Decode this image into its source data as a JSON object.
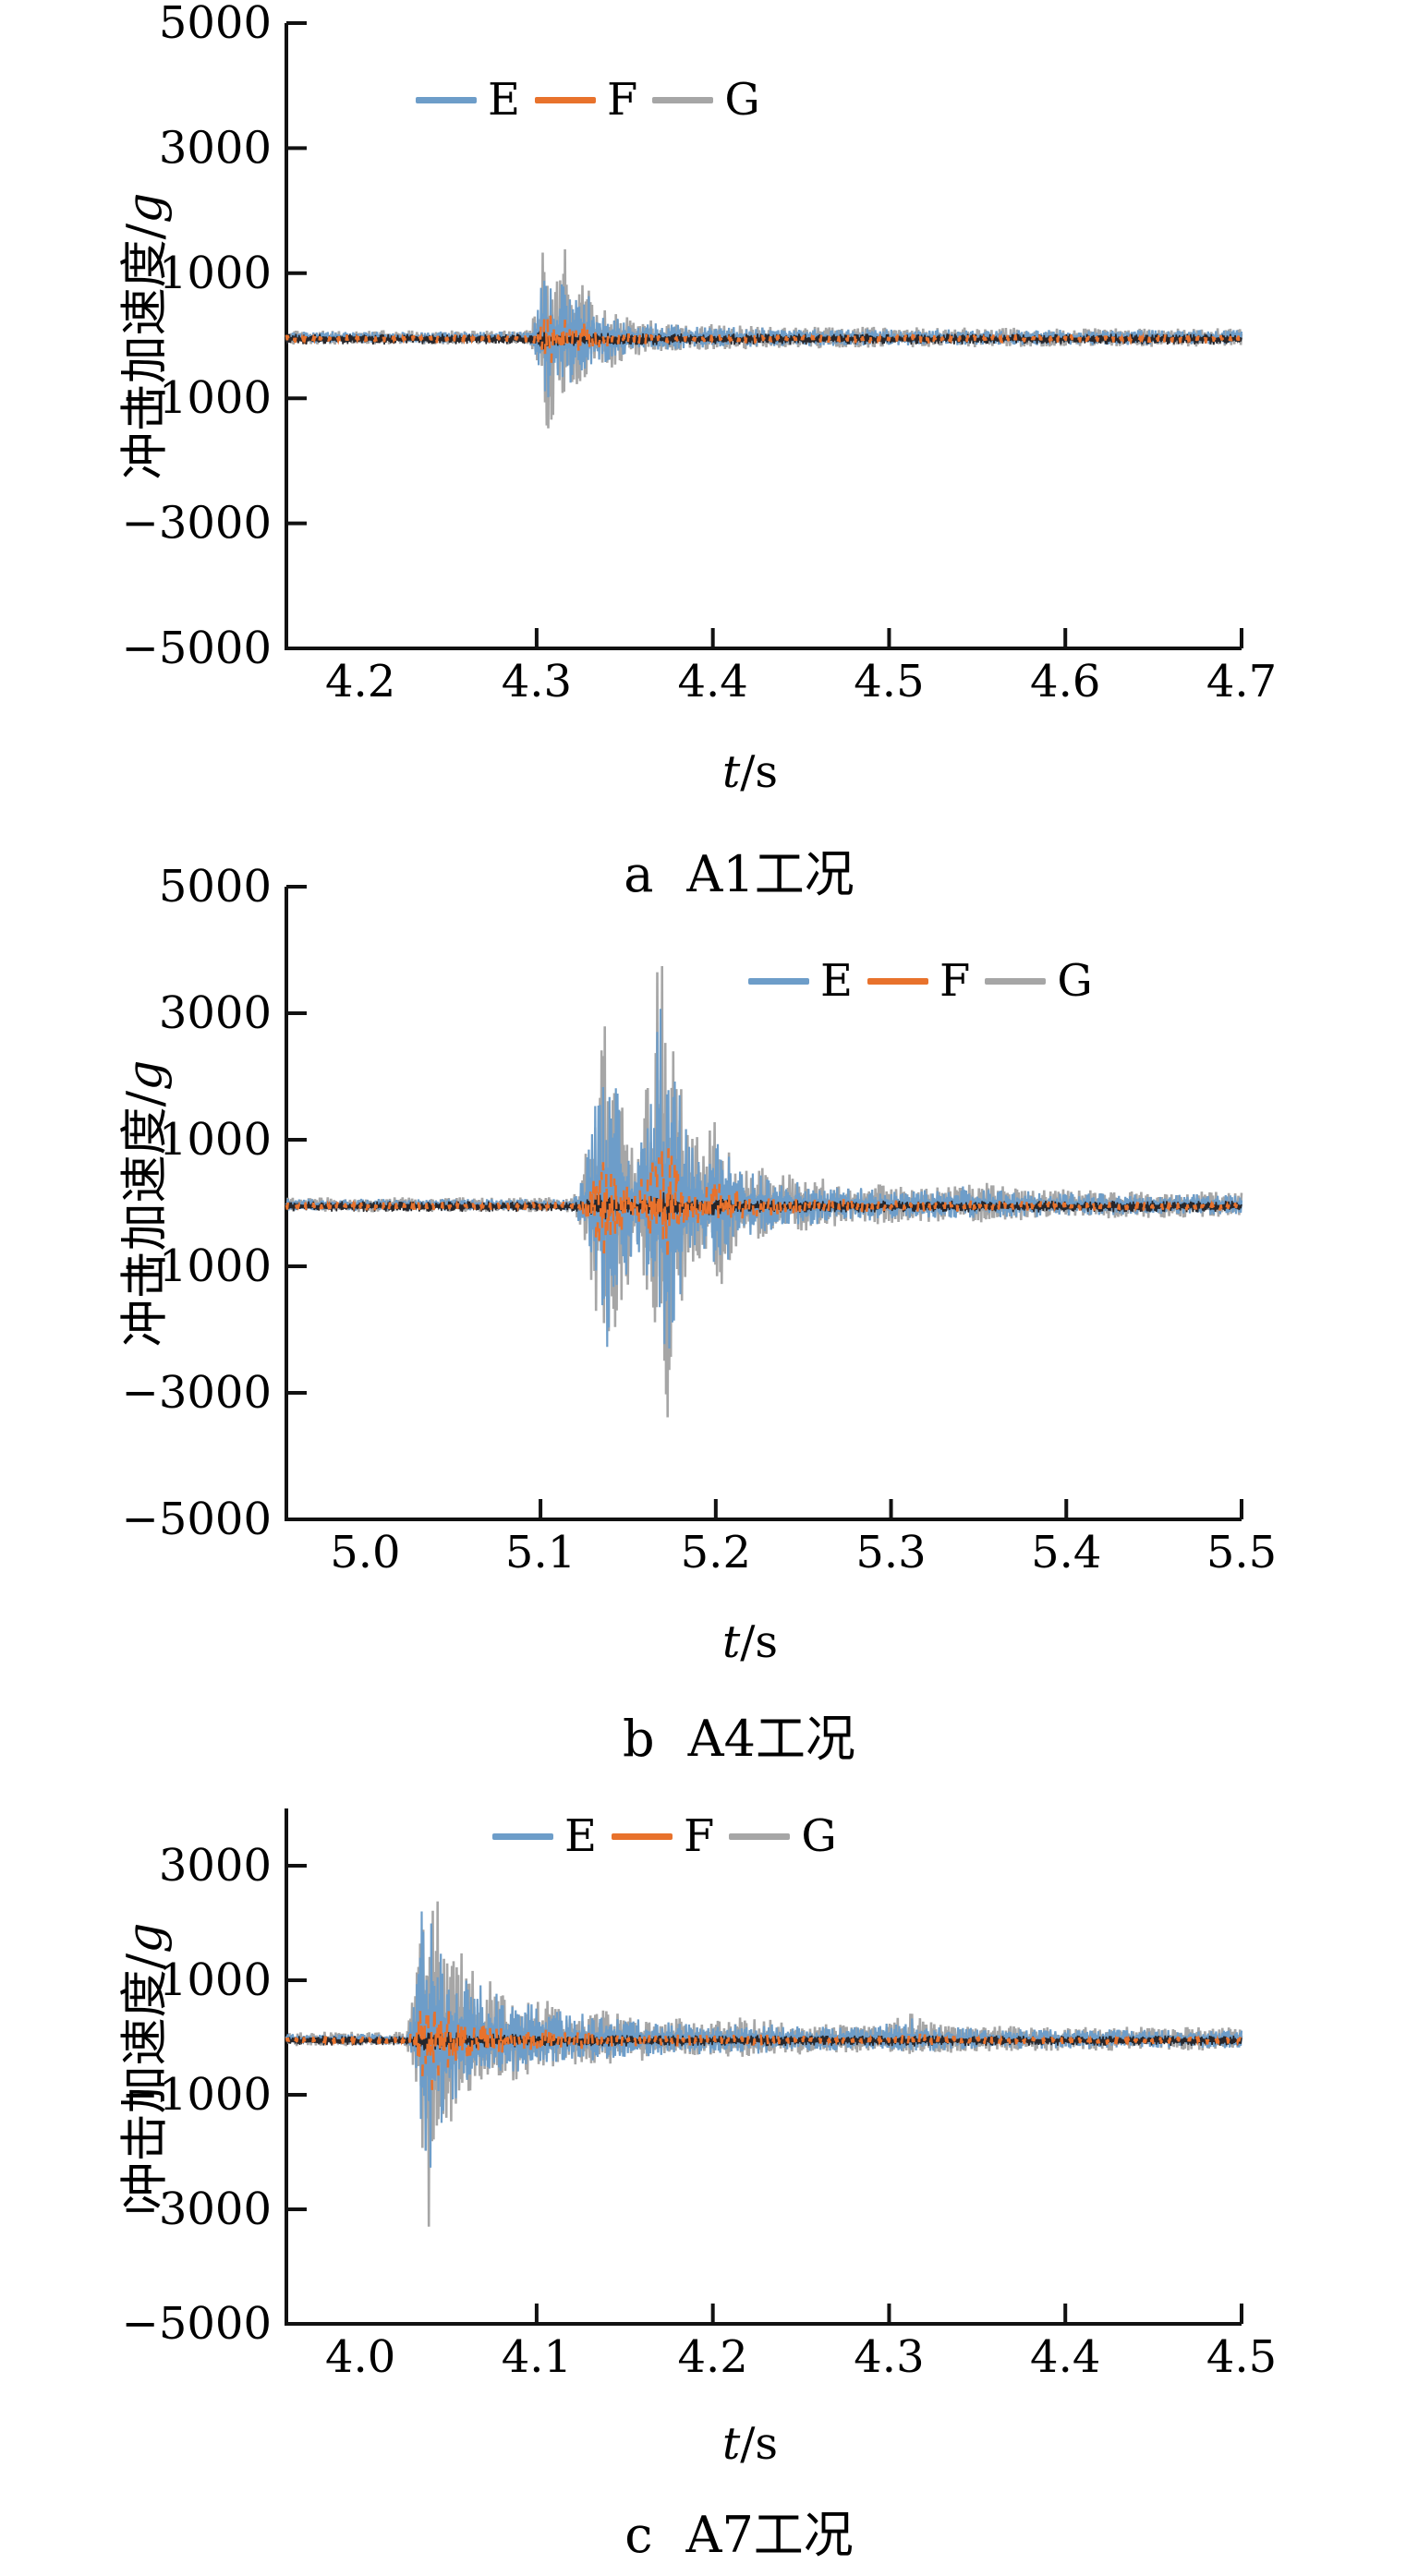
{
  "figure": {
    "background": "#ffffff"
  },
  "colors": {
    "series_E": "#6d9dc9",
    "series_F": "#e8722c",
    "series_G": "#a6a6a6",
    "overlap_dark": "#26262b",
    "axis": "#111111"
  },
  "chart_data": [
    {
      "id": "a",
      "type": "line",
      "caption_index": "a",
      "caption_title": "A1工况",
      "xlabel_var": "t",
      "xlabel_rest": "/s",
      "ylabel_text": "冲击加速度/",
      "ylabel_unit": "g",
      "legend": [
        "E",
        "F",
        "G"
      ],
      "xlim": [
        4.158,
        4.7
      ],
      "xticks": [
        4.2,
        4.3,
        4.4,
        4.5,
        4.6,
        4.7
      ],
      "xtick_labels": [
        "4.2",
        "4.3",
        "4.4",
        "4.5",
        "4.6",
        "4.7"
      ],
      "ylim": [
        -5000,
        5000
      ],
      "yticks": [
        5000,
        3000,
        1000,
        -1000,
        -3000,
        -5000
      ],
      "ytick_labels": [
        "5000",
        "3000",
        "1000",
        "−1000",
        "−3000",
        "−5000"
      ],
      "burst_start": 4.3,
      "peak_positive": 1900,
      "peak_negative": -2150,
      "quiet_band": 120,
      "seed": 1,
      "envelope": [
        [
          4.158,
          120,
          110
        ],
        [
          4.296,
          120,
          110
        ],
        [
          4.3,
          500,
          400
        ],
        [
          4.304,
          1900,
          1000
        ],
        [
          4.307,
          1350,
          2150
        ],
        [
          4.311,
          950,
          750
        ],
        [
          4.316,
          1500,
          1050
        ],
        [
          4.321,
          750,
          900
        ],
        [
          4.327,
          1000,
          650
        ],
        [
          4.334,
          550,
          480
        ],
        [
          4.341,
          420,
          520
        ],
        [
          4.352,
          340,
          310
        ],
        [
          4.372,
          270,
          250
        ],
        [
          4.4,
          220,
          200
        ],
        [
          4.45,
          185,
          175
        ],
        [
          4.52,
          165,
          155
        ],
        [
          4.6,
          155,
          150
        ],
        [
          4.7,
          150,
          145
        ]
      ],
      "series": [
        {
          "name": "G",
          "color_key": "series_G",
          "amp_scale": 1.0,
          "stroke": 2.6,
          "offset": -30
        },
        {
          "name": "E",
          "color_key": "series_E",
          "amp_scale": 0.8,
          "stroke": 2.2,
          "offset": -30
        },
        {
          "name": "overlap",
          "color_key": "overlap_dark",
          "role": "overlap-artifact",
          "amp_scale": 0.045,
          "base_amp": 80,
          "stroke": 1.6,
          "offset": -55
        },
        {
          "name": "F",
          "color_key": "series_F",
          "amp_scale": 0.3,
          "min_amp": 70,
          "stroke": 2.6,
          "dash": "14 38",
          "offset": -50
        }
      ]
    },
    {
      "id": "b",
      "type": "line",
      "caption_index": "b",
      "caption_title": "A4工况",
      "xlabel_var": "t",
      "xlabel_rest": "/s",
      "ylabel_text": "冲击加速度/",
      "ylabel_unit": "g",
      "legend": [
        "E",
        "F",
        "G"
      ],
      "xlim": [
        4.955,
        5.5
      ],
      "xticks": [
        5.0,
        5.1,
        5.2,
        5.3,
        5.4,
        5.5
      ],
      "xtick_labels": [
        "5.0",
        "5.1",
        "5.2",
        "5.3",
        "5.4",
        "5.5"
      ],
      "ylim": [
        -5000,
        5000
      ],
      "yticks": [
        5000,
        3000,
        1000,
        -1000,
        -3000,
        -5000
      ],
      "ytick_labels": [
        "5000",
        "3000",
        "1000",
        "−1000",
        "−3000",
        "−5000"
      ],
      "burst_start": 5.125,
      "peak_positive": 4350,
      "peak_negative": -4000,
      "quiet_band": 120,
      "seed": 2,
      "envelope": [
        [
          4.955,
          120,
          115
        ],
        [
          5.118,
          120,
          115
        ],
        [
          5.125,
          600,
          500
        ],
        [
          5.131,
          2300,
          1600
        ],
        [
          5.136,
          3600,
          2500
        ],
        [
          5.139,
          2100,
          3050
        ],
        [
          5.143,
          2600,
          2000
        ],
        [
          5.148,
          1300,
          1500
        ],
        [
          5.153,
          950,
          850
        ],
        [
          5.158,
          1500,
          1150
        ],
        [
          5.163,
          2300,
          1750
        ],
        [
          5.168,
          4350,
          2600
        ],
        [
          5.171,
          3100,
          4000
        ],
        [
          5.175,
          3300,
          2700
        ],
        [
          5.181,
          1900,
          1550
        ],
        [
          5.187,
          1250,
          1050
        ],
        [
          5.193,
          950,
          850
        ],
        [
          5.199,
          1500,
          1150
        ],
        [
          5.205,
          1150,
          1300
        ],
        [
          5.213,
          750,
          680
        ],
        [
          5.222,
          620,
          570
        ],
        [
          5.233,
          540,
          500
        ],
        [
          5.25,
          450,
          410
        ],
        [
          5.27,
          390,
          350
        ],
        [
          5.3,
          310,
          290
        ],
        [
          5.33,
          285,
          265
        ],
        [
          5.345,
          430,
          310
        ],
        [
          5.362,
          300,
          265
        ],
        [
          5.4,
          245,
          225
        ],
        [
          5.45,
          215,
          205
        ],
        [
          5.5,
          205,
          195
        ]
      ],
      "series": [
        {
          "name": "G",
          "color_key": "series_G",
          "amp_scale": 1.0,
          "stroke": 2.6,
          "offset": -30
        },
        {
          "name": "E",
          "color_key": "series_E",
          "amp_scale": 0.8,
          "stroke": 2.2,
          "offset": -30
        },
        {
          "name": "overlap",
          "color_key": "overlap_dark",
          "role": "overlap-artifact",
          "amp_scale": 0.045,
          "base_amp": 80,
          "stroke": 1.6,
          "offset": -55
        },
        {
          "name": "F",
          "color_key": "series_F",
          "amp_scale": 0.3,
          "min_amp": 70,
          "stroke": 2.6,
          "dash": "14 38",
          "offset": -50
        }
      ]
    },
    {
      "id": "c",
      "type": "line",
      "caption_index": "c",
      "caption_title": "A7工况",
      "xlabel_var": "t",
      "xlabel_rest": "/s",
      "ylabel_text": "冲击加速度/",
      "ylabel_unit": "g",
      "legend": [
        "E",
        "F",
        "G"
      ],
      "xlim": [
        3.958,
        4.5
      ],
      "xticks": [
        4.0,
        4.1,
        4.2,
        4.3,
        4.4,
        4.5
      ],
      "xtick_labels": [
        "4.0",
        "4.1",
        "4.2",
        "4.3",
        "4.4",
        "4.5"
      ],
      "ylim": [
        -5000,
        4000
      ],
      "yticks": [
        3000,
        1000,
        -1000,
        -3000,
        -5000
      ],
      "ytick_labels": [
        "3000",
        "1000",
        "−1000",
        "−3000",
        "−5000"
      ],
      "burst_start": 4.03,
      "peak_positive": 3300,
      "peak_negative": -4000,
      "quiet_band": 130,
      "seed": 3,
      "envelope": [
        [
          3.958,
          130,
          120
        ],
        [
          4.026,
          130,
          120
        ],
        [
          4.031,
          900,
          650
        ],
        [
          4.035,
          3300,
          2000
        ],
        [
          4.039,
          2500,
          4000
        ],
        [
          4.043,
          2800,
          2400
        ],
        [
          4.048,
          2100,
          1700
        ],
        [
          4.054,
          1650,
          1350
        ],
        [
          4.062,
          1350,
          1100
        ],
        [
          4.072,
          1080,
          920
        ],
        [
          4.084,
          900,
          780
        ],
        [
          4.097,
          770,
          670
        ],
        [
          4.112,
          640,
          560
        ],
        [
          4.132,
          530,
          470
        ],
        [
          4.156,
          440,
          400
        ],
        [
          4.182,
          375,
          345
        ],
        [
          4.206,
          325,
          305
        ],
        [
          4.222,
          430,
          335
        ],
        [
          4.237,
          305,
          285
        ],
        [
          4.262,
          275,
          255
        ],
        [
          4.292,
          255,
          235
        ],
        [
          4.312,
          510,
          265
        ],
        [
          4.326,
          285,
          255
        ],
        [
          4.362,
          235,
          215
        ],
        [
          4.402,
          225,
          205
        ],
        [
          4.452,
          215,
          198
        ],
        [
          4.5,
          212,
          196
        ]
      ],
      "series": [
        {
          "name": "G",
          "color_key": "series_G",
          "amp_scale": 1.0,
          "stroke": 2.6,
          "offset": -30
        },
        {
          "name": "E",
          "color_key": "series_E",
          "amp_scale": 0.8,
          "stroke": 2.2,
          "offset": -30
        },
        {
          "name": "overlap",
          "color_key": "overlap_dark",
          "role": "overlap-artifact",
          "amp_scale": 0.045,
          "base_amp": 80,
          "stroke": 1.6,
          "offset": -55
        },
        {
          "name": "F",
          "color_key": "series_F",
          "amp_scale": 0.3,
          "min_amp": 70,
          "stroke": 2.6,
          "dash": "14 38",
          "offset": -50
        }
      ]
    }
  ]
}
